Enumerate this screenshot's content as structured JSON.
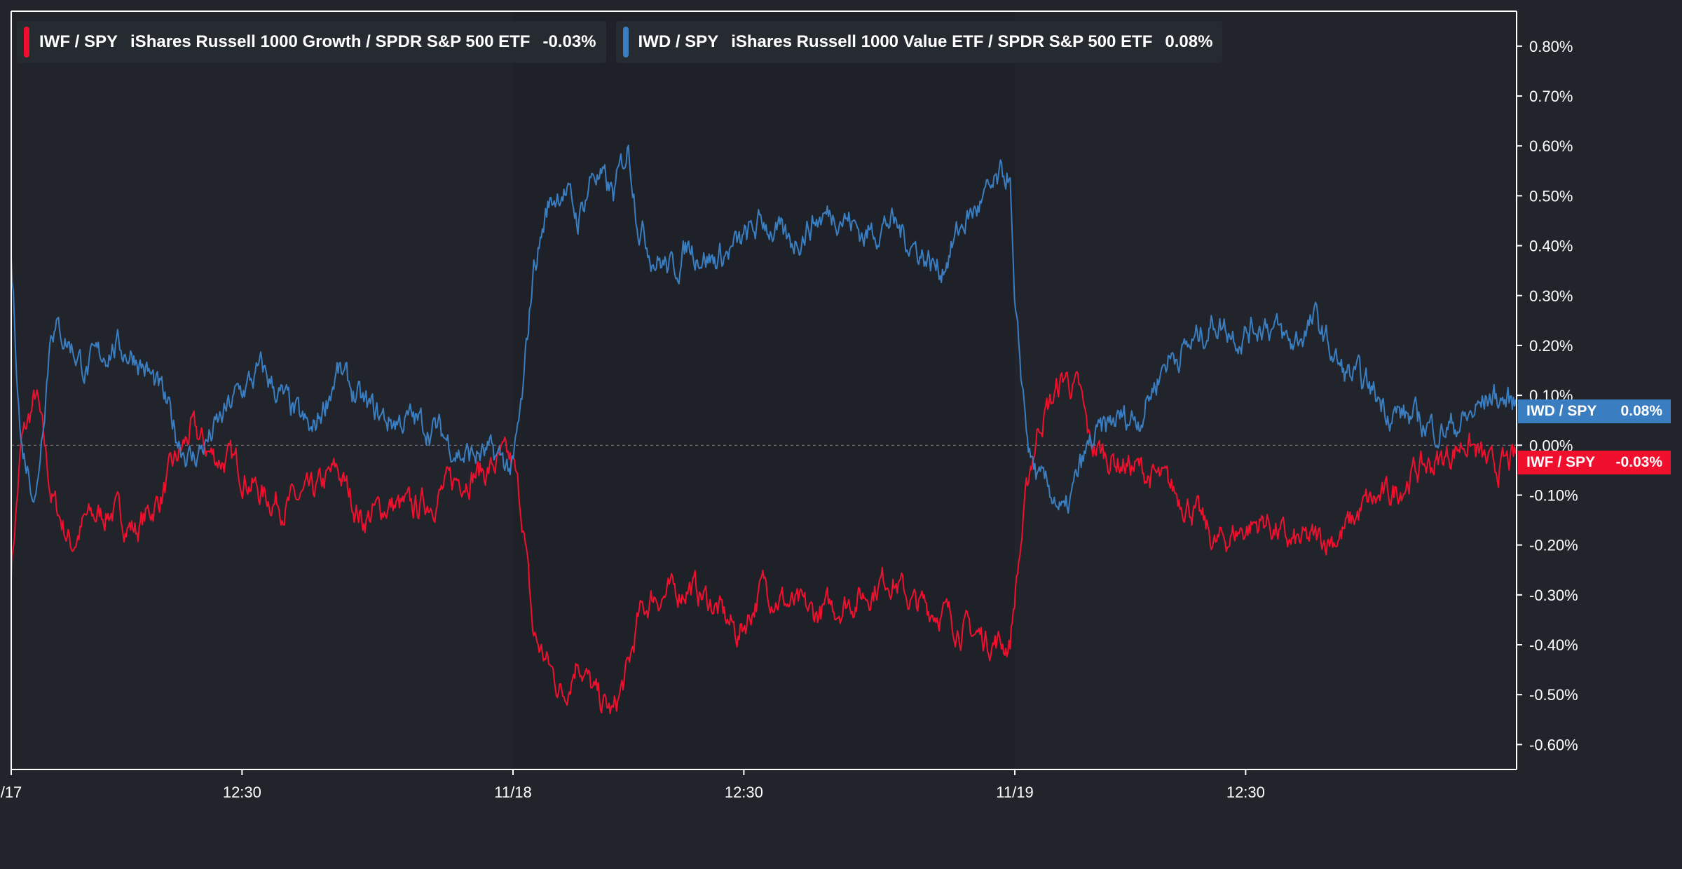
{
  "colors": {
    "background": "#21252b",
    "growth": "#f0102e",
    "value": "#3a7dc0",
    "axis": "#ffffff",
    "zero_line": "#777777"
  },
  "legend": [
    {
      "symbol": "IWF / SPY",
      "name": "iShares Russell 1000 Growth / SPDR S&P 500 ETF",
      "value": "-0.03%",
      "color": "#f0102e"
    },
    {
      "symbol": "IWD / SPY",
      "name": "iShares Russell 1000 Value ETF / SPDR S&P 500 ETF",
      "value": "0.08%",
      "color": "#3a7dc0"
    }
  ],
  "tags": {
    "value": {
      "label": "IWD / SPY",
      "value": "0.08%"
    },
    "growth": {
      "label": "IWF / SPY",
      "value": "-0.03%"
    }
  },
  "chart_data": {
    "type": "line",
    "title": "",
    "xlabel": "",
    "ylabel": "",
    "x_ticks": [
      {
        "label": "/17",
        "t": 0
      },
      {
        "label": "12:30",
        "t": 0.46
      },
      {
        "label": "11/18",
        "t": 1.0
      },
      {
        "label": "12:30",
        "t": 1.46
      },
      {
        "label": "11/19",
        "t": 2.0
      },
      {
        "label": "12:30",
        "t": 2.46
      }
    ],
    "session_breaks": [
      1.0,
      2.0
    ],
    "xlim": [
      0,
      3.0
    ],
    "ylim": [
      -0.65,
      0.87
    ],
    "y_ticks": [
      0.8,
      0.7,
      0.6,
      0.5,
      0.4,
      0.3,
      0.2,
      0.1,
      0.0,
      -0.1,
      -0.2,
      -0.3,
      -0.4,
      -0.5,
      -0.6
    ],
    "y_tick_labels": [
      "0.80%",
      "0.70%",
      "0.60%",
      "0.50%",
      "0.40%",
      "0.30%",
      "0.20%",
      "0.10%",
      "0.00%",
      "-0.10%",
      "-0.20%",
      "-0.30%",
      "-0.40%",
      "-0.50%",
      "-0.60%"
    ],
    "series": [
      {
        "name": "IWF / SPY",
        "t": [
          0,
          0.02,
          0.05,
          0.08,
          0.12,
          0.15,
          0.2,
          0.25,
          0.3,
          0.33,
          0.36,
          0.4,
          0.45,
          0.5,
          0.55,
          0.6,
          0.65,
          0.7,
          0.75,
          0.8,
          0.85,
          0.9,
          0.95,
          0.98,
          1.0,
          1.02,
          1.04,
          1.07,
          1.1,
          1.13,
          1.16,
          1.2,
          1.23,
          1.25,
          1.28,
          1.32,
          1.35,
          1.4,
          1.45,
          1.5,
          1.55,
          1.6,
          1.65,
          1.7,
          1.75,
          1.8,
          1.85,
          1.9,
          1.95,
          1.99,
          2.0,
          2.03,
          2.05,
          2.08,
          2.1,
          2.13,
          2.15,
          2.2,
          2.25,
          2.3,
          2.35,
          2.4,
          2.45,
          2.5,
          2.55,
          2.6,
          2.65,
          2.7,
          2.75,
          2.8,
          2.85,
          2.9,
          2.95,
          3.0
        ],
        "values": [
          -0.25,
          0.0,
          0.1,
          -0.1,
          -0.2,
          -0.15,
          -0.13,
          -0.17,
          -0.1,
          -0.03,
          0.03,
          -0.02,
          -0.04,
          -0.1,
          -0.12,
          -0.1,
          -0.05,
          -0.15,
          -0.12,
          -0.13,
          -0.1,
          -0.06,
          -0.05,
          -0.03,
          -0.04,
          -0.15,
          -0.38,
          -0.44,
          -0.5,
          -0.42,
          -0.5,
          -0.54,
          -0.45,
          -0.35,
          -0.3,
          -0.3,
          -0.28,
          -0.32,
          -0.38,
          -0.28,
          -0.32,
          -0.34,
          -0.32,
          -0.3,
          -0.26,
          -0.32,
          -0.33,
          -0.37,
          -0.39,
          -0.4,
          -0.3,
          -0.05,
          0.05,
          0.1,
          0.14,
          0.1,
          0.0,
          -0.03,
          -0.05,
          -0.08,
          -0.12,
          -0.2,
          -0.17,
          -0.15,
          -0.2,
          -0.19,
          -0.18,
          -0.12,
          -0.1,
          -0.05,
          -0.03,
          0.01,
          -0.05,
          -0.03
        ]
      },
      {
        "name": "IWD / SPY",
        "t": [
          0,
          0.02,
          0.05,
          0.08,
          0.12,
          0.15,
          0.2,
          0.25,
          0.3,
          0.33,
          0.36,
          0.4,
          0.45,
          0.5,
          0.55,
          0.6,
          0.65,
          0.7,
          0.75,
          0.8,
          0.85,
          0.9,
          0.95,
          0.98,
          1.0,
          1.02,
          1.04,
          1.07,
          1.1,
          1.13,
          1.16,
          1.2,
          1.23,
          1.25,
          1.28,
          1.32,
          1.35,
          1.4,
          1.45,
          1.5,
          1.55,
          1.6,
          1.65,
          1.7,
          1.75,
          1.8,
          1.85,
          1.9,
          1.95,
          1.99,
          2.0,
          2.03,
          2.05,
          2.08,
          2.1,
          2.13,
          2.15,
          2.2,
          2.25,
          2.3,
          2.35,
          2.4,
          2.45,
          2.5,
          2.55,
          2.6,
          2.65,
          2.7,
          2.75,
          2.8,
          2.85,
          2.9,
          2.95,
          3.0
        ],
        "values": [
          0.37,
          0.0,
          -0.1,
          0.25,
          0.2,
          0.15,
          0.2,
          0.18,
          0.1,
          0.02,
          -0.03,
          0.02,
          0.1,
          0.15,
          0.08,
          0.02,
          0.15,
          0.08,
          0.05,
          0.05,
          0.03,
          -0.02,
          -0.02,
          -0.03,
          -0.05,
          0.1,
          0.35,
          0.48,
          0.52,
          0.45,
          0.55,
          0.5,
          0.6,
          0.45,
          0.38,
          0.35,
          0.4,
          0.37,
          0.4,
          0.45,
          0.4,
          0.45,
          0.47,
          0.42,
          0.45,
          0.4,
          0.35,
          0.45,
          0.5,
          0.55,
          0.25,
          -0.02,
          -0.08,
          -0.1,
          -0.15,
          -0.05,
          0.0,
          0.05,
          0.06,
          0.17,
          0.2,
          0.25,
          0.22,
          0.25,
          0.2,
          0.25,
          0.15,
          0.12,
          0.07,
          0.05,
          0.03,
          0.05,
          0.1,
          0.08
        ]
      }
    ]
  }
}
